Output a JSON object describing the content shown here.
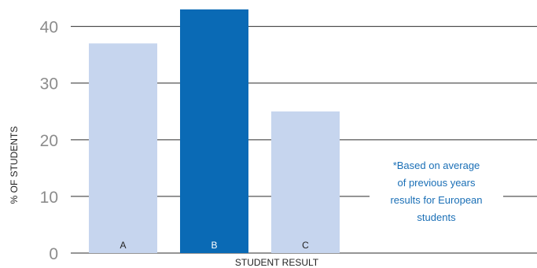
{
  "chart_data": {
    "type": "bar",
    "categories": [
      "A",
      "B",
      "C"
    ],
    "values": [
      37,
      43,
      25
    ],
    "highlight_index": 1,
    "xlabel": "STUDENT RESULT",
    "ylabel": "% OF STUDENTS",
    "ylim": [
      0,
      43
    ],
    "yticks": [
      0,
      10,
      20,
      30,
      40
    ],
    "grid": true,
    "colors": {
      "bar": "#c6d5ee",
      "bar_highlight": "#0a6ab5",
      "label_on_light": "#222222",
      "label_on_dark": "#ffffff",
      "note": "#1a6fb6"
    },
    "annotation": {
      "lines": [
        "*Based on average",
        "of previous years",
        "results for European",
        "students"
      ]
    }
  }
}
